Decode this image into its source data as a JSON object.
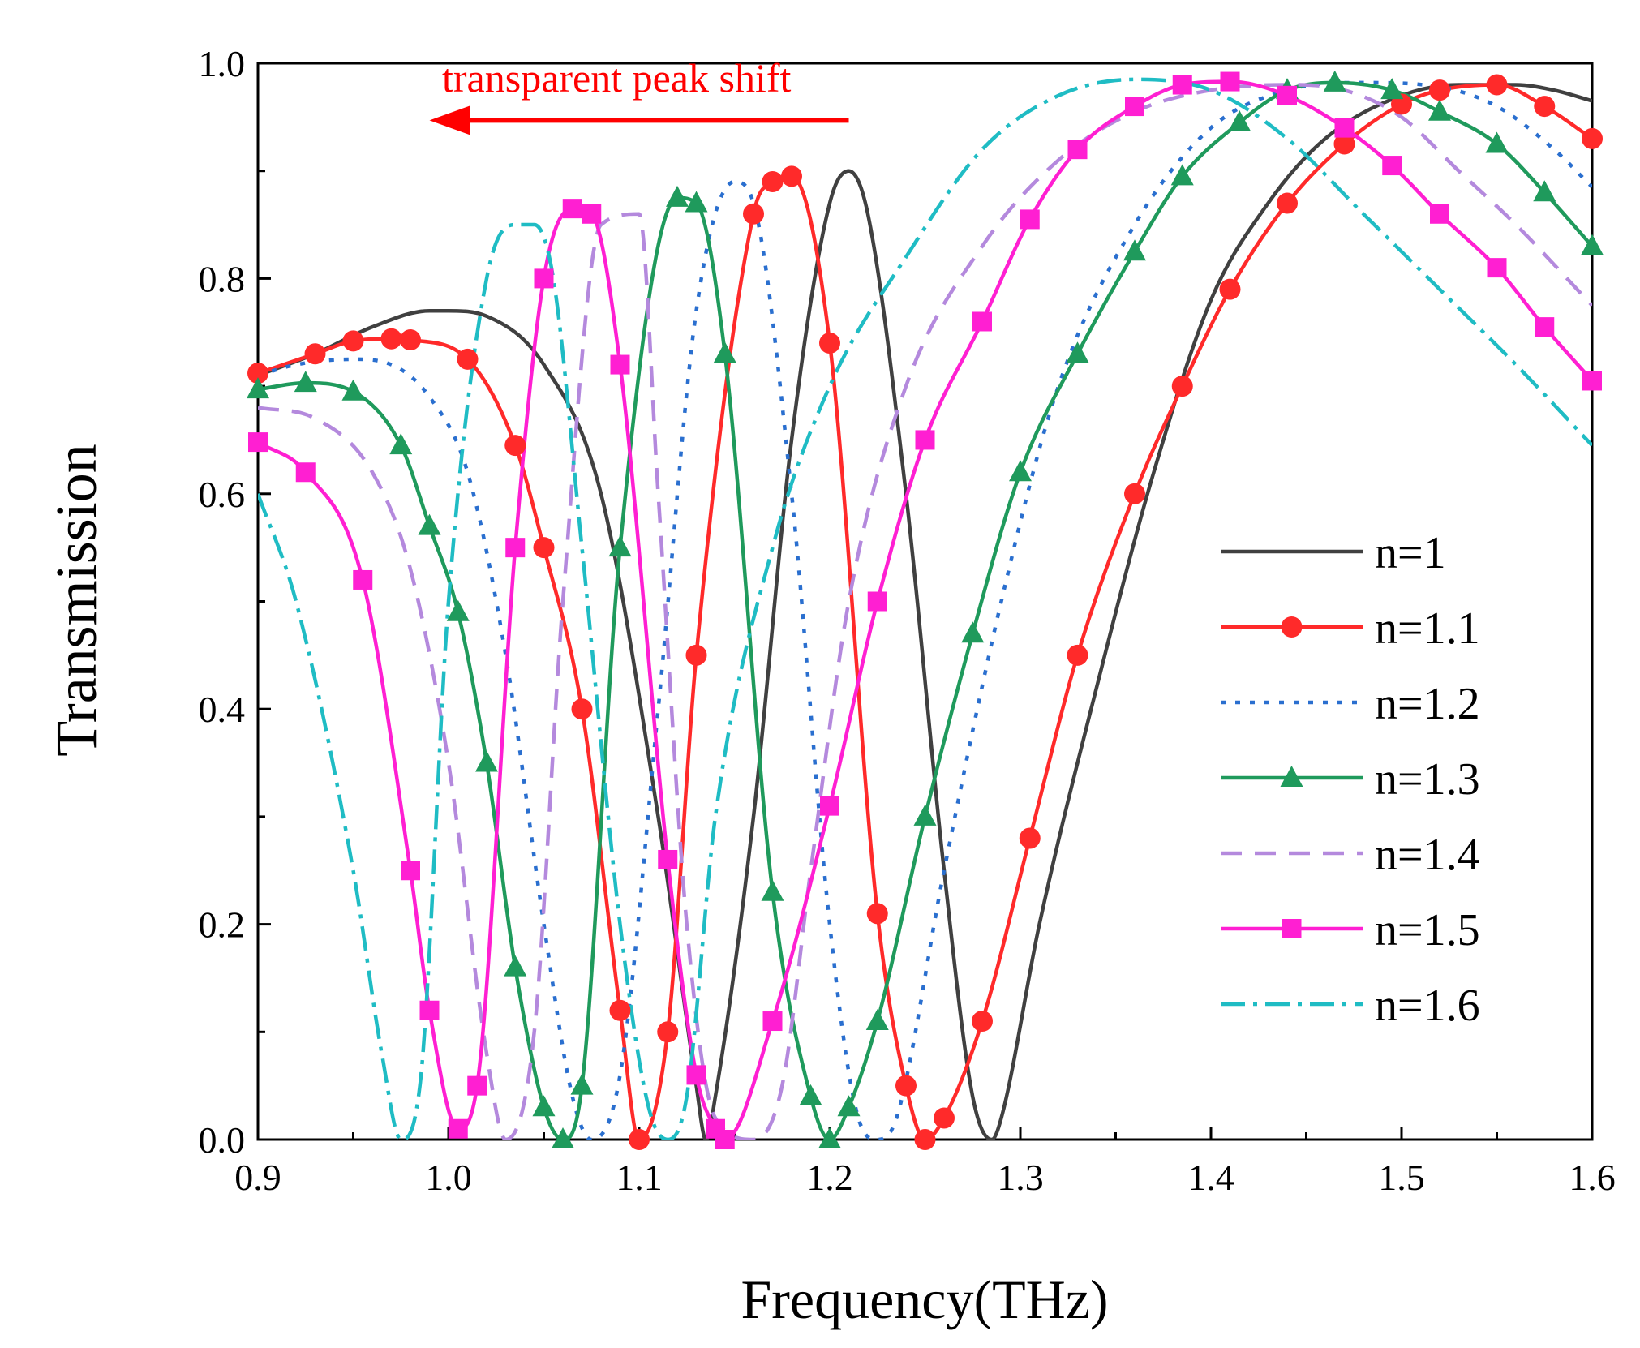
{
  "chart_data": {
    "type": "line",
    "title": "",
    "xlabel": "Frequency(THz)",
    "ylabel": "Transmission",
    "xlim": [
      0.9,
      1.6
    ],
    "ylim": [
      0.0,
      1.0
    ],
    "xticks": [
      "0.9",
      "1.0",
      "1.1",
      "1.2",
      "1.3",
      "1.4",
      "1.5",
      "1.6"
    ],
    "yticks": [
      "0.0",
      "0.2",
      "0.4",
      "0.6",
      "0.8",
      "1.0"
    ],
    "grid": false,
    "legend_position": "right",
    "annotation": {
      "text": "transparent peak shift",
      "color": "#ff0000",
      "arrow_from": 1.21,
      "arrow_to": 0.99,
      "y": 0.947
    },
    "series": [
      {
        "name": "n=1",
        "color": "#404040",
        "dash": "",
        "marker": "none",
        "x": [
          0.9,
          0.93,
          0.96,
          0.99,
          1.0,
          1.02,
          1.05,
          1.08,
          1.11,
          1.13,
          1.135,
          1.14,
          1.16,
          1.18,
          1.2,
          1.21,
          1.22,
          1.24,
          1.26,
          1.275,
          1.285,
          1.29,
          1.31,
          1.34,
          1.37,
          1.4,
          1.43,
          1.46,
          1.5,
          1.53,
          1.56,
          1.58,
          1.6
        ],
        "y": [
          0.71,
          0.73,
          0.755,
          0.77,
          0.77,
          0.765,
          0.72,
          0.6,
          0.3,
          0.05,
          0.0,
          0.04,
          0.3,
          0.65,
          0.87,
          0.9,
          0.86,
          0.6,
          0.25,
          0.04,
          0.0,
          0.02,
          0.2,
          0.42,
          0.62,
          0.78,
          0.87,
          0.93,
          0.97,
          0.98,
          0.98,
          0.975,
          0.965
        ]
      },
      {
        "name": "n=1.1",
        "color": "#ff2a2a",
        "dash": "",
        "marker": "circle",
        "x": [
          0.9,
          0.93,
          0.95,
          0.97,
          0.98,
          1.01,
          1.035,
          1.05,
          1.07,
          1.09,
          1.1,
          1.115,
          1.13,
          1.16,
          1.17,
          1.18,
          1.2,
          1.225,
          1.24,
          1.25,
          1.26,
          1.28,
          1.305,
          1.33,
          1.36,
          1.385,
          1.41,
          1.44,
          1.47,
          1.5,
          1.52,
          1.55,
          1.575,
          1.6
        ],
        "y": [
          0.712,
          0.73,
          0.742,
          0.744,
          0.743,
          0.725,
          0.645,
          0.55,
          0.4,
          0.12,
          0.0,
          0.1,
          0.45,
          0.86,
          0.89,
          0.895,
          0.74,
          0.21,
          0.05,
          0.0,
          0.02,
          0.11,
          0.28,
          0.45,
          0.6,
          0.7,
          0.79,
          0.87,
          0.925,
          0.962,
          0.975,
          0.98,
          0.96,
          0.93
        ]
      },
      {
        "name": "n=1.2",
        "color": "#2a6fcf",
        "dash": "6,12",
        "marker": "none",
        "x": [
          0.9,
          0.92,
          0.95,
          0.97,
          0.99,
          1.01,
          1.03,
          1.05,
          1.065,
          1.075,
          1.09,
          1.11,
          1.13,
          1.15,
          1.16,
          1.18,
          1.2,
          1.215,
          1.225,
          1.235,
          1.26,
          1.29,
          1.32,
          1.36,
          1.4,
          1.44,
          1.48,
          1.52,
          1.55,
          1.58,
          1.6
        ],
        "y": [
          0.71,
          0.72,
          0.725,
          0.72,
          0.69,
          0.62,
          0.45,
          0.2,
          0.04,
          0.0,
          0.06,
          0.4,
          0.77,
          0.89,
          0.87,
          0.6,
          0.2,
          0.02,
          0.0,
          0.02,
          0.25,
          0.5,
          0.7,
          0.85,
          0.94,
          0.975,
          0.982,
          0.978,
          0.96,
          0.92,
          0.885
        ]
      },
      {
        "name": "n=1.3",
        "color": "#1f9a5c",
        "dash": "",
        "marker": "triangle",
        "x": [
          0.9,
          0.925,
          0.95,
          0.975,
          0.99,
          1.005,
          1.02,
          1.035,
          1.05,
          1.06,
          1.07,
          1.09,
          1.12,
          1.13,
          1.145,
          1.17,
          1.19,
          1.2,
          1.21,
          1.225,
          1.25,
          1.275,
          1.3,
          1.33,
          1.36,
          1.385,
          1.415,
          1.44,
          1.465,
          1.495,
          1.52,
          1.55,
          1.575,
          1.6
        ],
        "y": [
          0.697,
          0.703,
          0.695,
          0.645,
          0.57,
          0.49,
          0.35,
          0.16,
          0.03,
          0.0,
          0.05,
          0.55,
          0.875,
          0.87,
          0.73,
          0.23,
          0.04,
          0.0,
          0.03,
          0.11,
          0.3,
          0.47,
          0.62,
          0.73,
          0.825,
          0.895,
          0.945,
          0.975,
          0.982,
          0.975,
          0.955,
          0.925,
          0.88,
          0.83
        ]
      },
      {
        "name": "n=1.4",
        "color": "#b489dd",
        "dash": "26,16",
        "marker": "none",
        "x": [
          0.9,
          0.93,
          0.96,
          0.98,
          1.0,
          1.02,
          1.03,
          1.045,
          1.06,
          1.08,
          1.1,
          1.11,
          1.125,
          1.14,
          1.16,
          1.175,
          1.19,
          1.21,
          1.24,
          1.28,
          1.32,
          1.36,
          1.4,
          1.44,
          1.47,
          1.5,
          1.53,
          1.56,
          1.6
        ],
        "y": [
          0.68,
          0.67,
          0.62,
          0.53,
          0.35,
          0.08,
          0.0,
          0.1,
          0.5,
          0.85,
          0.86,
          0.6,
          0.2,
          0.02,
          0.0,
          0.05,
          0.25,
          0.5,
          0.7,
          0.83,
          0.91,
          0.955,
          0.975,
          0.98,
          0.975,
          0.95,
          0.9,
          0.85,
          0.775
        ]
      },
      {
        "name": "n=1.5",
        "color": "#ff1fd2",
        "dash": "",
        "marker": "square",
        "x": [
          0.9,
          0.925,
          0.955,
          0.98,
          0.99,
          1.005,
          1.015,
          1.035,
          1.05,
          1.065,
          1.075,
          1.09,
          1.115,
          1.13,
          1.14,
          1.145,
          1.17,
          1.2,
          1.225,
          1.25,
          1.28,
          1.305,
          1.33,
          1.36,
          1.385,
          1.41,
          1.44,
          1.47,
          1.495,
          1.52,
          1.55,
          1.575,
          1.6
        ],
        "y": [
          0.648,
          0.62,
          0.52,
          0.25,
          0.12,
          0.01,
          0.05,
          0.55,
          0.8,
          0.865,
          0.86,
          0.72,
          0.26,
          0.06,
          0.01,
          0.0,
          0.11,
          0.31,
          0.5,
          0.65,
          0.76,
          0.855,
          0.92,
          0.96,
          0.98,
          0.983,
          0.97,
          0.94,
          0.905,
          0.86,
          0.81,
          0.755,
          0.705
        ]
      },
      {
        "name": "n=1.6",
        "color": "#1fbcc4",
        "dash": "30,10,5,10",
        "marker": "none",
        "x": [
          0.9,
          0.92,
          0.95,
          0.965,
          0.975,
          0.985,
          1.0,
          1.02,
          1.035,
          1.045,
          1.055,
          1.07,
          1.09,
          1.105,
          1.115,
          1.125,
          1.14,
          1.17,
          1.2,
          1.24,
          1.28,
          1.32,
          1.36,
          1.4,
          1.44,
          1.48,
          1.52,
          1.56,
          1.6
        ],
        "y": [
          0.6,
          0.5,
          0.25,
          0.08,
          0.0,
          0.05,
          0.5,
          0.8,
          0.85,
          0.85,
          0.8,
          0.55,
          0.2,
          0.03,
          0.0,
          0.04,
          0.3,
          0.55,
          0.7,
          0.82,
          0.92,
          0.97,
          0.985,
          0.975,
          0.93,
          0.86,
          0.79,
          0.72,
          0.645
        ]
      }
    ]
  }
}
